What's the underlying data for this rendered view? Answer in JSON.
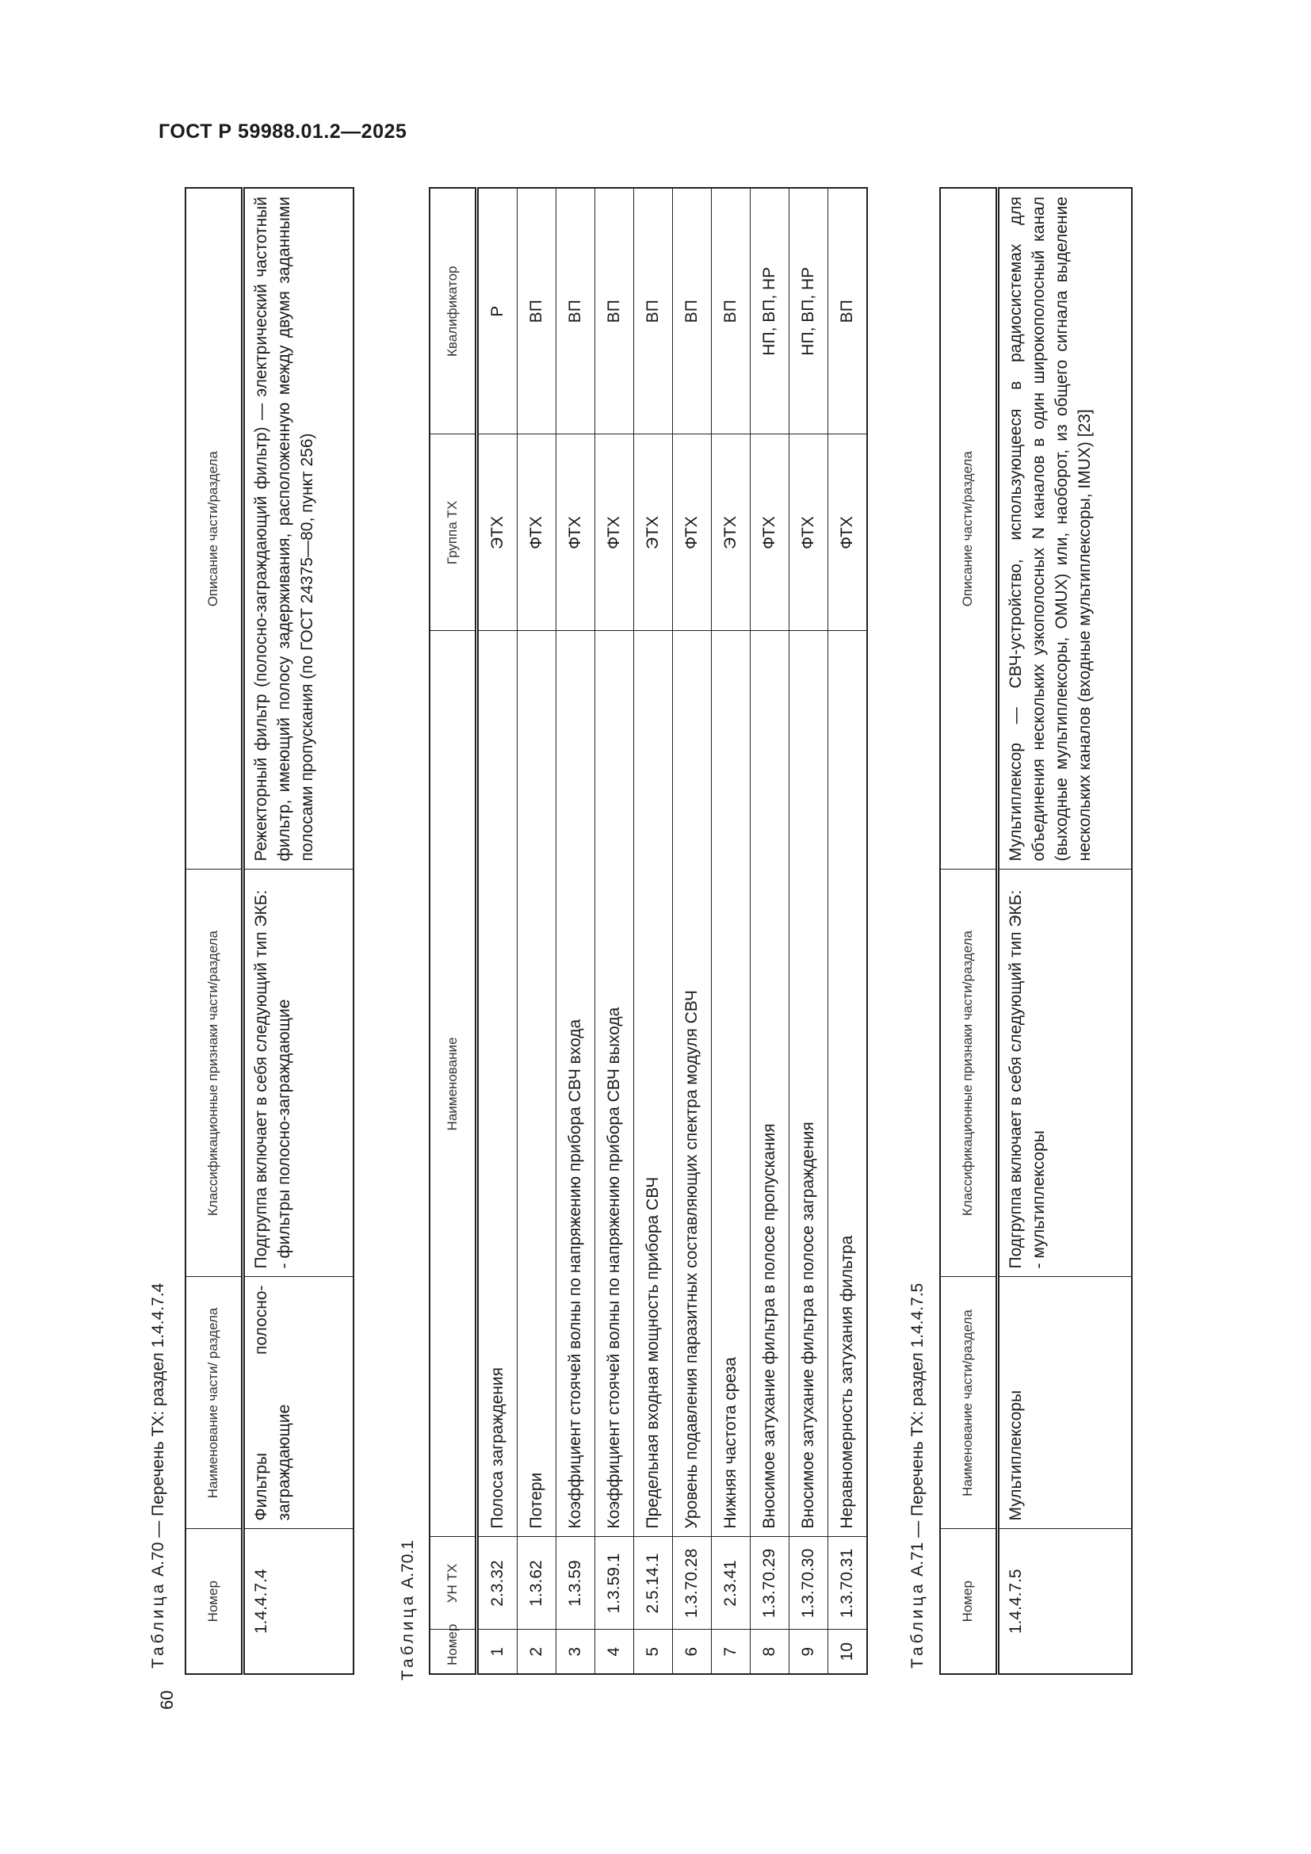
{
  "header": {
    "title": "ГОСТ Р 59988.01.2—2025"
  },
  "page_number": "60",
  "table_a70": {
    "caption_prefix": "Таблица",
    "caption_rest": "А.70 — Перечень ТХ: раздел 1.4.4.7.4",
    "headers": [
      "Номер",
      "Наименование части/ раздела",
      "Классификационные признаки части/раздела",
      "Описание части/раздела"
    ],
    "row": {
      "number": "1.4.4.7.4",
      "name": "Фильтры полосно-заграждающие",
      "classification": [
        "Подгруппа включает в себя следующий тип ЭКБ:",
        "- фильтры полосно-заграждающие"
      ],
      "description": "Режекторный фильтр (полосно-заграждающий фильтр) — электрический частотный фильтр, имеющий полосу задерживания, расположенную между двумя заданными полосами пропускания (по ГОСТ 24375—80, пункт 256)"
    }
  },
  "table_a70_1": {
    "caption_prefix": "Таблица",
    "caption_rest": "А.70.1",
    "headers": [
      "Номер",
      "УН ТХ",
      "Наименование",
      "Группа ТХ",
      "Квалификатор"
    ],
    "rows": [
      [
        "1",
        "2.3.32",
        "Полоса заграждения",
        "ЭТХ",
        "Р"
      ],
      [
        "2",
        "1.3.62",
        "Потери",
        "ФТХ",
        "ВП"
      ],
      [
        "3",
        "1.3.59",
        "Коэффициент стоячей волны по напряжению прибора СВЧ входа",
        "ФТХ",
        "ВП"
      ],
      [
        "4",
        "1.3.59.1",
        "Коэффициент стоячей волны по напряжению прибора СВЧ выхода",
        "ФТХ",
        "ВП"
      ],
      [
        "5",
        "2.5.14.1",
        "Предельная входная мощность прибора СВЧ",
        "ЭТХ",
        "ВП"
      ],
      [
        "6",
        "1.3.70.28",
        "Уровень подавления паразитных составляющих спектра модуля СВЧ",
        "ФТХ",
        "ВП"
      ],
      [
        "7",
        "2.3.41",
        "Нижняя частота среза",
        "ЭТХ",
        "ВП"
      ],
      [
        "8",
        "1.3.70.29",
        "Вносимое затухание фильтра в полосе пропускания",
        "ФТХ",
        "НП, ВП, НР"
      ],
      [
        "9",
        "1.3.70.30",
        "Вносимое затухание фильтра в полосе заграждения",
        "ФТХ",
        "НП, ВП, НР"
      ],
      [
        "10",
        "1.3.70.31",
        "Неравномерность затухания фильтра",
        "ФТХ",
        "ВП"
      ]
    ]
  },
  "table_a71": {
    "caption_prefix": "Таблица",
    "caption_rest": "А.71 — Перечень ТХ: раздел 1.4.4.7.5",
    "headers": [
      "Номер",
      "Наименование части/раздела",
      "Классификационные признаки части/раздела",
      "Описание части/раздела"
    ],
    "row": {
      "number": "1.4.4.7.5",
      "name": "Мультиплексоры",
      "classification": [
        "Подгруппа включает в себя следующий тип ЭКБ:",
        "- мультиплексоры"
      ],
      "description": "Мультиплексор — СВЧ-устройство, использующееся в радиосистемах для объединения нескольких узкополосных N каналов в один широкополосный канал (выходные мультиплексоры, OMUX) или, наоборот, из общего сигнала выделение нескольких каналов (входные мультиплексоры, IMUX) [23]"
    }
  }
}
